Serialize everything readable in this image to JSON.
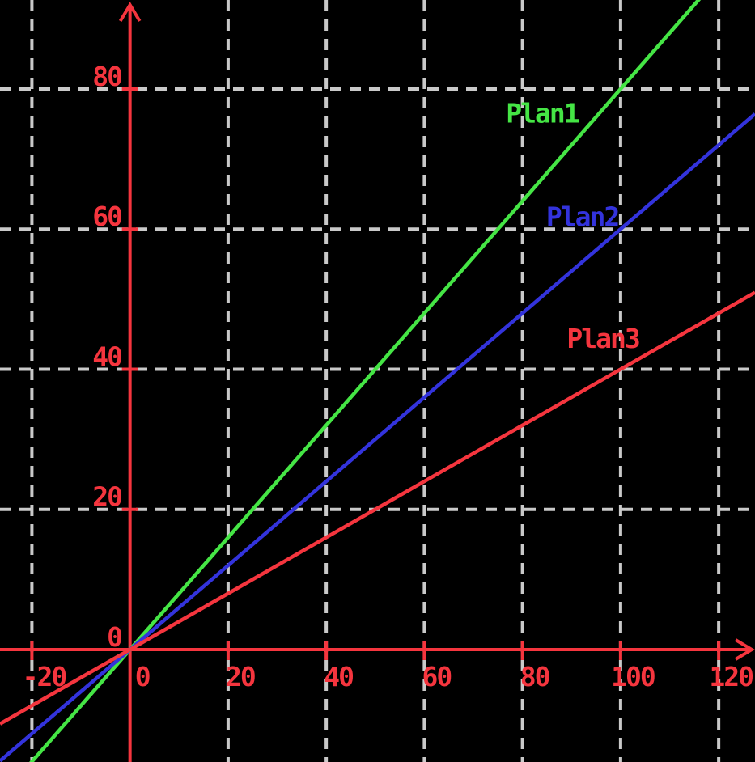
{
  "page": {
    "background": "#000000"
  },
  "chart_data": {
    "type": "line",
    "title": "",
    "xlabel": "",
    "ylabel": "",
    "grid": true,
    "legend_position": "inline-labels",
    "background_color": "#000000",
    "axis_color": "#F5353E",
    "grid_color": "#C9C9C9",
    "xlim": [
      -26.5,
      127.4
    ],
    "ylim": [
      -16.05,
      92.7
    ],
    "x_ticks": [
      -20,
      0,
      20,
      40,
      60,
      80,
      100,
      120
    ],
    "y_ticks": [
      0,
      20,
      40,
      60,
      80
    ],
    "x_tick_labels": [
      "-20",
      "0",
      "20",
      "40",
      "60",
      "80",
      "100",
      "120"
    ],
    "y_tick_labels": [
      "0",
      "20",
      "40",
      "60",
      "80"
    ],
    "series": [
      {
        "name": "Plan1",
        "color": "#45E545",
        "slope": 0.8,
        "intercept": 0,
        "points": [
          [
            -20,
            -16
          ],
          [
            0,
            0
          ],
          [
            20,
            16
          ],
          [
            40,
            32
          ],
          [
            60,
            48
          ],
          [
            80,
            64
          ],
          [
            100,
            80
          ],
          [
            120,
            96
          ]
        ],
        "label_pos": {
          "x": 84.0,
          "y": 76.5
        }
      },
      {
        "name": "Plan2",
        "color": "#3333DC",
        "slope": 0.6,
        "intercept": 0,
        "points": [
          [
            -20,
            -12
          ],
          [
            0,
            0
          ],
          [
            20,
            12
          ],
          [
            40,
            24
          ],
          [
            60,
            36
          ],
          [
            80,
            48
          ],
          [
            100,
            60
          ],
          [
            120,
            72
          ]
        ],
        "label_pos": {
          "x": 92.2,
          "y": 61.7
        }
      },
      {
        "name": "Plan3",
        "color": "#F5353E",
        "slope": 0.4,
        "intercept": 0,
        "points": [
          [
            -20,
            -8
          ],
          [
            0,
            0
          ],
          [
            20,
            8
          ],
          [
            40,
            16
          ],
          [
            60,
            24
          ],
          [
            80,
            32
          ],
          [
            100,
            40
          ],
          [
            120,
            48
          ]
        ],
        "label_pos": {
          "x": 96.4,
          "y": 44.3
        }
      }
    ]
  }
}
